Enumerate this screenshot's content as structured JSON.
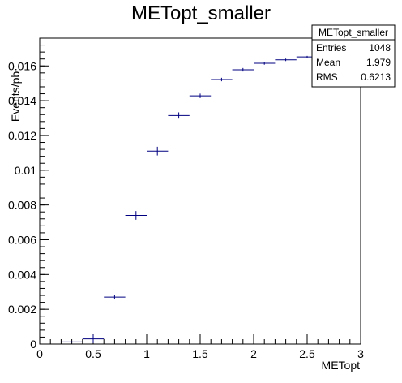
{
  "chart_data": {
    "type": "scatter",
    "title": "METopt_smaller",
    "xlabel": "METopt",
    "ylabel": "Events/pb",
    "xlim": [
      0,
      3
    ],
    "ylim": [
      0,
      0.0176
    ],
    "x_ticks": [
      0,
      0.5,
      1,
      1.5,
      2,
      2.5,
      3
    ],
    "x_tick_labels": [
      "0",
      "0.5",
      "1",
      "1.5",
      "2",
      "2.5",
      "3"
    ],
    "y_ticks": [
      0,
      0.002,
      0.004,
      0.006,
      0.008,
      0.01,
      0.012,
      0.014,
      0.016
    ],
    "y_tick_labels": [
      "0",
      "0.002",
      "0.004",
      "0.006",
      "0.008",
      "0.01",
      "0.012",
      "0.014",
      "0.016"
    ],
    "bin_width": 0.2,
    "series": [
      {
        "color": "#000080",
        "points": [
          {
            "x": 0.3,
            "y": 0.00012,
            "yerr": 4e-05
          },
          {
            "x": 0.5,
            "y": 0.0003,
            "yerr": 0.00025
          },
          {
            "x": 0.7,
            "y": 0.0027,
            "yerr": 0.00012
          },
          {
            "x": 0.9,
            "y": 0.0074,
            "yerr": 0.00025
          },
          {
            "x": 1.1,
            "y": 0.0111,
            "yerr": 0.00025
          },
          {
            "x": 1.3,
            "y": 0.01315,
            "yerr": 0.00018
          },
          {
            "x": 1.5,
            "y": 0.01428,
            "yerr": 0.00013
          },
          {
            "x": 1.7,
            "y": 0.01522,
            "yerr": 0.0001
          },
          {
            "x": 1.9,
            "y": 0.01578,
            "yerr": 0.0001
          },
          {
            "x": 2.1,
            "y": 0.01615,
            "yerr": 8e-05
          },
          {
            "x": 2.3,
            "y": 0.01635,
            "yerr": 7e-05
          },
          {
            "x": 2.5,
            "y": 0.01652,
            "yerr": 6e-05
          }
        ]
      }
    ],
    "stats_box": {
      "title": "METopt_smaller",
      "rows": [
        {
          "label": "Entries",
          "value": "1048"
        },
        {
          "label": "Mean",
          "value": "1.979"
        },
        {
          "label": "RMS",
          "value": "0.6213"
        }
      ]
    }
  }
}
